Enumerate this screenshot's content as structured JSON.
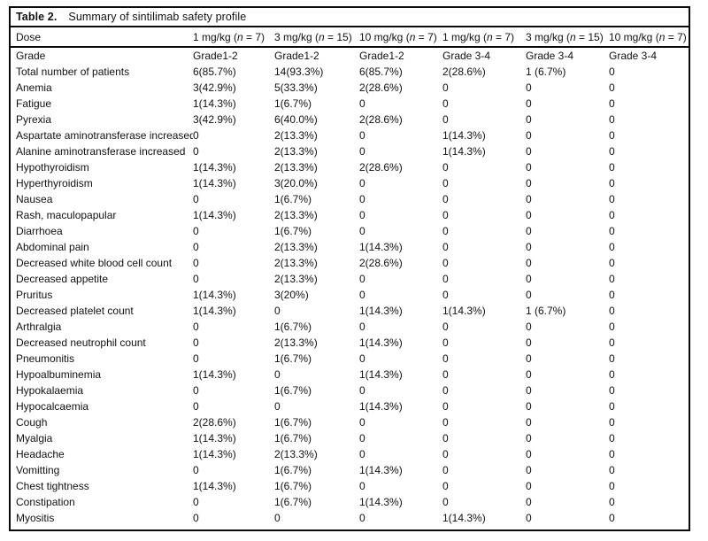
{
  "colors": {
    "background": "#ffffff",
    "text": "#111111",
    "rule": "#0a0a0a"
  },
  "table": {
    "title_label": "Table 2.",
    "title_text": "Summary of sintilimab safety profile",
    "dose_header": "Dose",
    "doses": [
      "1 mg/kg (n = 7)",
      "3 mg/kg (n = 15)",
      "10 mg/kg (n = 7)",
      "1 mg/kg (n = 7)",
      "3 mg/kg (n = 15)",
      "10 mg/kg (n = 7)"
    ],
    "grade_header": "Grade",
    "grades": [
      "Grade1-2",
      "Grade1-2",
      "Grade1-2",
      "Grade 3-4",
      "Grade 3-4",
      "Grade 3-4"
    ],
    "rows": [
      {
        "label": "Total number of patients",
        "values": [
          "6(85.7%)",
          "14(93.3%)",
          "6(85.7%)",
          "2(28.6%)",
          "1 (6.7%)",
          "0"
        ]
      },
      {
        "label": "Anemia",
        "values": [
          "3(42.9%)",
          "5(33.3%)",
          "2(28.6%)",
          "0",
          "0",
          "0"
        ]
      },
      {
        "label": "Fatigue",
        "values": [
          "1(14.3%)",
          "1(6.7%)",
          "0",
          "0",
          "0",
          "0"
        ]
      },
      {
        "label": "Pyrexia",
        "values": [
          "3(42.9%)",
          "6(40.0%)",
          "2(28.6%)",
          "0",
          "0",
          "0"
        ]
      },
      {
        "label": "Aspartate aminotransferase increased",
        "values": [
          "0",
          "2(13.3%)",
          "0",
          "1(14.3%)",
          "0",
          "0"
        ]
      },
      {
        "label": "Alanine aminotransferase increased",
        "values": [
          "0",
          "2(13.3%)",
          "0",
          "1(14.3%)",
          "0",
          "0"
        ]
      },
      {
        "label": "Hypothyroidism",
        "values": [
          "1(14.3%)",
          "2(13.3%)",
          "2(28.6%)",
          "0",
          "0",
          "0"
        ]
      },
      {
        "label": "Hyperthyroidism",
        "values": [
          "1(14.3%)",
          "3(20.0%)",
          "0",
          "0",
          "0",
          "0"
        ]
      },
      {
        "label": "Nausea",
        "values": [
          "0",
          "1(6.7%)",
          "0",
          "0",
          "0",
          "0"
        ]
      },
      {
        "label": "Rash, maculopapular",
        "values": [
          "1(14.3%)",
          "2(13.3%)",
          "0",
          "0",
          "0",
          "0"
        ]
      },
      {
        "label": "Diarrhoea",
        "values": [
          "0",
          "1(6.7%)",
          "0",
          "0",
          "0",
          "0"
        ]
      },
      {
        "label": "Abdominal pain",
        "values": [
          "0",
          "2(13.3%)",
          "1(14.3%)",
          "0",
          "0",
          "0"
        ]
      },
      {
        "label": "Decreased white blood cell count",
        "values": [
          "0",
          "2(13.3%)",
          "2(28.6%)",
          "0",
          "0",
          "0"
        ]
      },
      {
        "label": "Decreased appetite",
        "values": [
          "0",
          "2(13.3%)",
          "0",
          "0",
          "0",
          "0"
        ]
      },
      {
        "label": "Pruritus",
        "values": [
          "1(14.3%)",
          "3(20%)",
          "0",
          "0",
          "0",
          "0"
        ]
      },
      {
        "label": "Decreased platelet count",
        "values": [
          "1(14.3%)",
          "0",
          "1(14.3%)",
          "1(14.3%)",
          "1 (6.7%)",
          "0"
        ]
      },
      {
        "label": "Arthralgia",
        "values": [
          "0",
          "1(6.7%)",
          "0",
          "0",
          "0",
          "0"
        ]
      },
      {
        "label": "Decreased neutrophil count",
        "values": [
          "0",
          "2(13.3%)",
          "1(14.3%)",
          "0",
          "0",
          "0"
        ]
      },
      {
        "label": "Pneumonitis",
        "values": [
          "0",
          "1(6.7%)",
          "0",
          "0",
          "0",
          "0"
        ]
      },
      {
        "label": "Hypoalbuminemia",
        "values": [
          "1(14.3%)",
          "0",
          "1(14.3%)",
          "0",
          "0",
          "0"
        ]
      },
      {
        "label": "Hypokalaemia",
        "values": [
          "0",
          "1(6.7%)",
          "0",
          "0",
          "0",
          "0"
        ]
      },
      {
        "label": "Hypocalcaemia",
        "values": [
          "0",
          "0",
          "1(14.3%)",
          "0",
          "0",
          "0"
        ]
      },
      {
        "label": "Cough",
        "values": [
          "2(28.6%)",
          "1(6.7%)",
          "0",
          "0",
          "0",
          "0"
        ]
      },
      {
        "label": "Myalgia",
        "values": [
          "1(14.3%)",
          "1(6.7%)",
          "0",
          "0",
          "0",
          "0"
        ]
      },
      {
        "label": "Headache",
        "values": [
          "1(14.3%)",
          "2(13.3%)",
          "0",
          "0",
          "0",
          "0"
        ]
      },
      {
        "label": "Vomitting",
        "values": [
          "0",
          "1(6.7%)",
          "1(14.3%)",
          "0",
          "0",
          "0"
        ]
      },
      {
        "label": "Chest tightness",
        "values": [
          "1(14.3%)",
          "1(6.7%)",
          "0",
          "0",
          "0",
          "0"
        ]
      },
      {
        "label": "Constipation",
        "values": [
          "0",
          "1(6.7%)",
          "1(14.3%)",
          "0",
          "0",
          "0"
        ]
      },
      {
        "label": "Myositis",
        "values": [
          "0",
          "0",
          "0",
          "1(14.3%)",
          "0",
          "0"
        ]
      }
    ]
  }
}
